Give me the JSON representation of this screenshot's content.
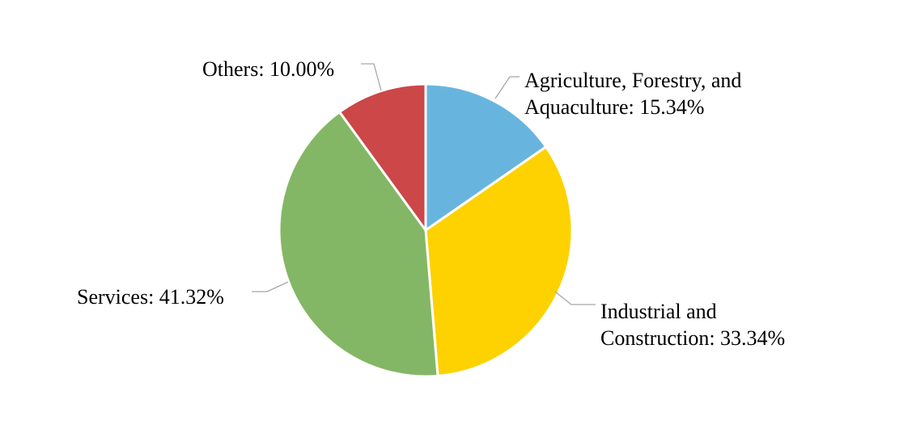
{
  "chart_data": {
    "type": "pie",
    "title": "",
    "legend": "none",
    "slices": [
      {
        "label": "Agriculture, Forestry, and Aquaculture",
        "value": 15.34,
        "display": "15.34%",
        "color": "#67b5de"
      },
      {
        "label": "Industrial and Construction",
        "value": 33.34,
        "display": "33.34%",
        "color": "#fdd200"
      },
      {
        "label": "Services",
        "value": 41.32,
        "display": "41.32%",
        "color": "#84b765"
      },
      {
        "label": "Others",
        "value": 10.0,
        "display": "10.00%",
        "color": "#cc4748"
      }
    ],
    "data_labels": [
      {
        "lines": [
          "Agriculture, Forestry, and",
          "Aquaculture: 15.34%"
        ]
      },
      {
        "lines": [
          "Industrial and",
          "Construction: 33.34%"
        ]
      },
      {
        "lines": [
          "Services: 41.32%"
        ]
      },
      {
        "lines": [
          "Others: 10.00%"
        ]
      }
    ]
  }
}
